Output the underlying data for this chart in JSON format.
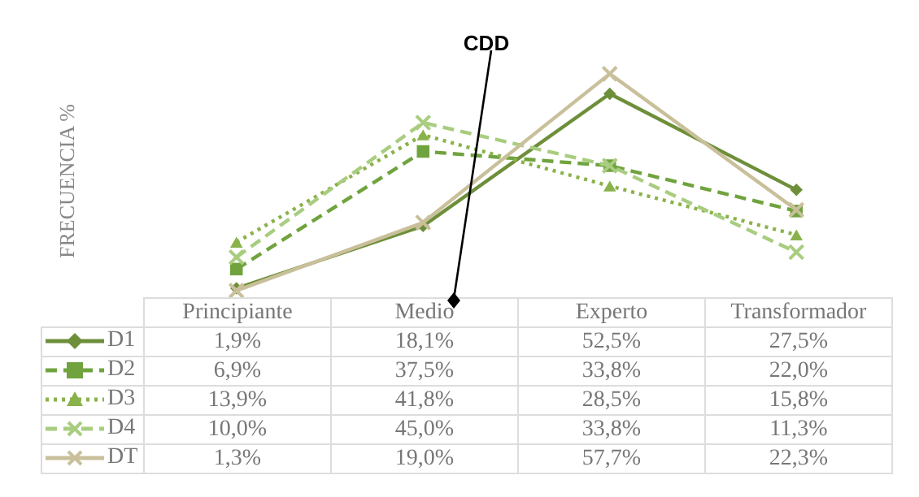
{
  "chart_data": {
    "type": "line",
    "ylabel": "FRECUENCIA %",
    "annotations": [
      "CDD"
    ],
    "categories": [
      "Principiante",
      "Medio",
      "Experto",
      "Transformador"
    ],
    "series": [
      {
        "name": "D1",
        "color": "#6e8f3a",
        "marker": "diamond",
        "line_style": "solid",
        "values": [
          1.9,
          18.1,
          52.5,
          27.5
        ],
        "value_labels": [
          "1,9%",
          "18,1%",
          "52,5%",
          "27,5%"
        ]
      },
      {
        "name": "D2",
        "color": "#70a33e",
        "marker": "square",
        "line_style": "dashed",
        "values": [
          6.9,
          37.5,
          33.8,
          22.0
        ],
        "value_labels": [
          "6,9%",
          "37,5%",
          "33,8%",
          "22,0%"
        ]
      },
      {
        "name": "D3",
        "color": "#8ab24a",
        "marker": "triangle",
        "line_style": "dotted",
        "values": [
          13.9,
          41.8,
          28.5,
          15.8
        ],
        "value_labels": [
          "13,9%",
          "41,8%",
          "28,5%",
          "15,8%"
        ]
      },
      {
        "name": "D4",
        "color": "#a9cd80",
        "marker": "cross",
        "line_style": "dashed",
        "values": [
          10.0,
          45.0,
          33.8,
          11.3
        ],
        "value_labels": [
          "10,0%",
          "45,0%",
          "33,8%",
          "11,3%"
        ]
      },
      {
        "name": "DT",
        "color": "#c9c09b",
        "marker": "cross",
        "line_style": "solid",
        "values": [
          1.3,
          19.0,
          57.7,
          22.3
        ],
        "value_labels": [
          "1,3%",
          "19,0%",
          "57,7%",
          "22,3%"
        ]
      }
    ],
    "tick_labels": "x",
    "legend": "bottom"
  }
}
